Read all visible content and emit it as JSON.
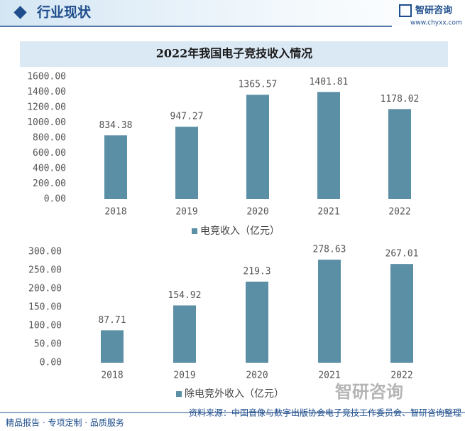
{
  "header": {
    "title": "行业现状",
    "logo": "智研咨询",
    "url": "www.chyxx.com"
  },
  "chart_data": [
    {
      "type": "bar",
      "title": "2022年我国电子竞技收入情况",
      "categories": [
        "2018",
        "2019",
        "2020",
        "2021",
        "2022"
      ],
      "series": [
        {
          "name": "电竞收入（亿元）",
          "color": "#5b8fa6",
          "values": [
            834.38,
            947.27,
            1365.57,
            1401.81,
            1178.02
          ]
        }
      ],
      "ylim": [
        0,
        1600
      ],
      "yticks": [
        {
          "value": 0,
          "label": "0.00"
        },
        {
          "value": 200,
          "label": "200.00"
        },
        {
          "value": 400,
          "label": "400.00"
        },
        {
          "value": 600,
          "label": "600.00"
        },
        {
          "value": 800,
          "label": "800.00"
        },
        {
          "value": 1000,
          "label": "1000.00"
        },
        {
          "value": 1200,
          "label": "1200.00"
        },
        {
          "value": 1400,
          "label": "1400.00"
        },
        {
          "value": 1600,
          "label": "1600.00"
        }
      ]
    },
    {
      "type": "bar",
      "categories": [
        "2018",
        "2019",
        "2020",
        "2021",
        "2022"
      ],
      "series": [
        {
          "name": "除电竞外收入（亿元）",
          "color": "#5b8fa6",
          "values": [
            87.71,
            154.92,
            219.3,
            278.63,
            267.01
          ]
        }
      ],
      "ylim": [
        0,
        300
      ],
      "yticks": [
        {
          "value": 0,
          "label": "0.00"
        },
        {
          "value": 50,
          "label": "50.00"
        },
        {
          "value": 100,
          "label": "100.00"
        },
        {
          "value": 150,
          "label": "150.00"
        },
        {
          "value": 200,
          "label": "200.00"
        },
        {
          "value": 250,
          "label": "250.00"
        },
        {
          "value": 300,
          "label": "300.00"
        }
      ]
    }
  ],
  "footer": {
    "slogan": "精品报告 · 专项定制 · 品质服务",
    "source": "资料来源：中国音像与数字出版协会电子竞技工作委员会、智研咨询整理",
    "logo": "智研咨询"
  }
}
